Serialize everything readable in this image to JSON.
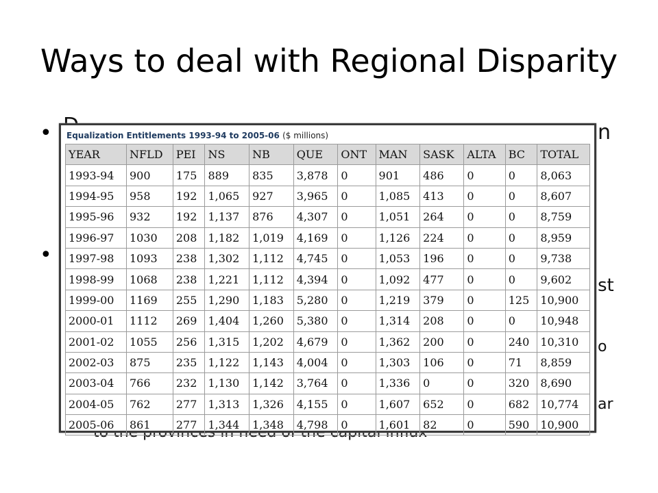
{
  "slide": {
    "title": "Ways to deal with Regional Disparity",
    "bullets": [
      "•",
      "•"
    ],
    "obscured_text": {
      "line1_left": "D",
      "line1_right": "n",
      "right_frag_1": "st",
      "right_frag_2": "o",
      "right_frag_3": "ar",
      "bottom_line": "to the provinces in need of the capital influx"
    }
  },
  "table_image": {
    "caption": "Equalization Entitlements 1993-94 to 2005-06",
    "units": "($ millions)",
    "columns": [
      "YEAR",
      "NFLD",
      "PEI",
      "NS",
      "NB",
      "QUE",
      "ONT",
      "MAN",
      "SASK",
      "ALTA",
      "BC",
      "TOTAL"
    ],
    "rows": [
      [
        "1993-94",
        "900",
        "175",
        "889",
        "835",
        "3,878",
        "0",
        "901",
        "486",
        "0",
        "0",
        "8,063"
      ],
      [
        "1994-95",
        "958",
        "192",
        "1,065",
        "927",
        "3,965",
        "0",
        "1,085",
        "413",
        "0",
        "0",
        "8,607"
      ],
      [
        "1995-96",
        "932",
        "192",
        "1,137",
        "876",
        "4,307",
        "0",
        "1,051",
        "264",
        "0",
        "0",
        "8,759"
      ],
      [
        "1996-97",
        "1030",
        "208",
        "1,182",
        "1,019",
        "4,169",
        "0",
        "1,126",
        "224",
        "0",
        "0",
        "8,959"
      ],
      [
        "1997-98",
        "1093",
        "238",
        "1,302",
        "1,112",
        "4,745",
        "0",
        "1,053",
        "196",
        "0",
        "0",
        "9,738"
      ],
      [
        "1998-99",
        "1068",
        "238",
        "1,221",
        "1,112",
        "4,394",
        "0",
        "1,092",
        "477",
        "0",
        "0",
        "9,602"
      ],
      [
        "1999-00",
        "1169",
        "255",
        "1,290",
        "1,183",
        "5,280",
        "0",
        "1,219",
        "379",
        "0",
        "125",
        "10,900"
      ],
      [
        "2000-01",
        "1112",
        "269",
        "1,404",
        "1,260",
        "5,380",
        "0",
        "1,314",
        "208",
        "0",
        "0",
        "10,948"
      ],
      [
        "2001-02",
        "1055",
        "256",
        "1,315",
        "1,202",
        "4,679",
        "0",
        "1,362",
        "200",
        "0",
        "240",
        "10,310"
      ],
      [
        "2002-03",
        "875",
        "235",
        "1,122",
        "1,143",
        "4,004",
        "0",
        "1,303",
        "106",
        "0",
        "71",
        "8,859"
      ],
      [
        "2003-04",
        "766",
        "232",
        "1,130",
        "1,142",
        "3,764",
        "0",
        "1,336",
        "0",
        "0",
        "320",
        "8,690"
      ],
      [
        "2004-05",
        "762",
        "277",
        "1,313",
        "1,326",
        "4,155",
        "0",
        "1,607",
        "652",
        "0",
        "682",
        "10,774"
      ],
      [
        "2005-06",
        "861",
        "277",
        "1,344",
        "1,348",
        "4,798",
        "0",
        "1,601",
        "82",
        "0",
        "590",
        "10,900"
      ]
    ]
  },
  "colors": {
    "header_fill": "#d9d9d9",
    "caption_text": "#1e3a5f",
    "frame": "#3b3b3b"
  }
}
